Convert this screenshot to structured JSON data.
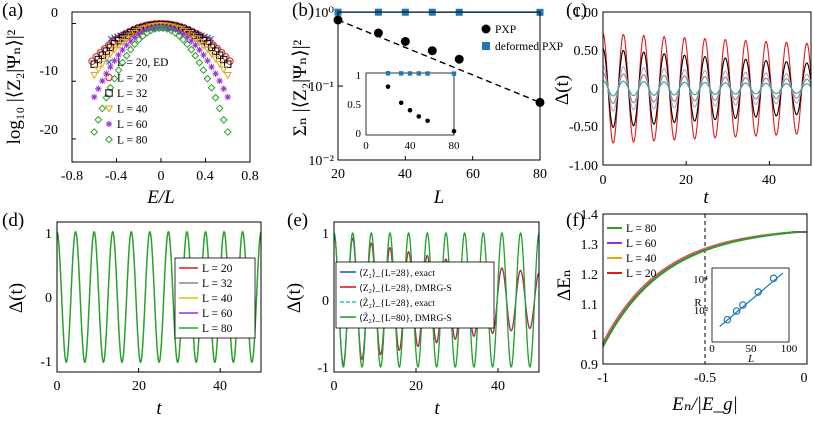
{
  "colors": {
    "red": "#e41a1c",
    "black": "#000000",
    "blue": "#1f5fbf",
    "sky": "#1f77b4",
    "orange": "#e8a317",
    "yellow": "#e6c300",
    "purple": "#9b30d9",
    "green": "#2ca02c",
    "darkgreen": "#1f8a2a",
    "cyan": "#14c8d8",
    "teal": "#2f9e9e",
    "gray": "#888888",
    "mauve": "#c29ab8"
  },
  "chart_data": [
    {
      "panel": "(a)",
      "type": "scatter",
      "xlabel": "E/L",
      "ylabel": "log₁₀ |⟨Z₂|Ψₙ⟩|²",
      "xlim": [
        -0.8,
        0.8
      ],
      "ylim": [
        -24,
        2
      ],
      "xticks": [
        "-0.8",
        "-0.4",
        "0",
        "0.4",
        "0.8"
      ],
      "yticks": [
        "0",
        "-10",
        "-20"
      ],
      "legend": [
        "L = 20, ED",
        "L = 20",
        "L = 32",
        "L = 40",
        "L = 60",
        "L = 80"
      ],
      "series": [
        {
          "name": "L = 20, ED",
          "color": "blue",
          "marker": "x",
          "peak": -0.8,
          "curv": 9,
          "xmax": 0.45
        },
        {
          "name": "L = 20",
          "color": "red",
          "marker": "circle",
          "peak": 0,
          "curv": 17,
          "xmax": 0.62
        },
        {
          "name": "L = 32",
          "color": "black",
          "marker": "square",
          "peak": -0.2,
          "curv": 19,
          "xmax": 0.6
        },
        {
          "name": "L = 40",
          "color": "orange",
          "marker": "triangle",
          "peak": -0.3,
          "curv": 24,
          "xmax": 0.6
        },
        {
          "name": "L = 60",
          "color": "purple",
          "marker": "star",
          "peak": -0.5,
          "curv": 34,
          "xmax": 0.6
        },
        {
          "name": "L = 80",
          "color": "green",
          "marker": "diamond",
          "peak": -0.8,
          "curv": 50,
          "xmax": 0.6
        }
      ]
    },
    {
      "panel": "(b)",
      "type": "line",
      "xlabel": "L",
      "ylabel": "Σₙ |⟨Z₂|Ψₙ⟩|²",
      "yscale": "log",
      "xlim": [
        20,
        80
      ],
      "ylim": [
        0.01,
        1
      ],
      "xticks": [
        "20",
        "40",
        "60",
        "80"
      ],
      "yticks": [
        "10⁰",
        "10⁻¹",
        "10⁻²"
      ],
      "series": [
        {
          "name": "PXP",
          "x": [
            20,
            32,
            40,
            48,
            56,
            80
          ],
          "y": [
            0.78,
            0.52,
            0.4,
            0.3,
            0.23,
            0.06
          ]
        },
        {
          "name": "deformed PXP",
          "x": [
            20,
            32,
            40,
            48,
            56,
            80
          ],
          "y": [
            0.995,
            0.994,
            0.993,
            0.993,
            0.992,
            0.99
          ]
        }
      ],
      "inset": {
        "xticks": [
          "0",
          "40",
          "80"
        ],
        "yticks": [
          "1",
          "0.5",
          "0"
        ],
        "pxp": {
          "x": [
            20,
            32,
            40,
            48,
            56,
            80
          ],
          "y": [
            0.78,
            0.52,
            0.4,
            0.3,
            0.23,
            0.06
          ]
        },
        "deformed": {
          "x": [
            20,
            32,
            40,
            48,
            56,
            80
          ],
          "y": [
            0.995,
            0.994,
            0.993,
            0.993,
            0.992,
            0.99
          ]
        }
      }
    },
    {
      "panel": "(c)",
      "type": "line",
      "xlabel": "t",
      "ylabel": "Δ(t)",
      "xlim": [
        0,
        50
      ],
      "ylim": [
        -1,
        1
      ],
      "xticks": [
        "0",
        "20",
        "40"
      ],
      "yticks": [
        "1.00",
        "0.50",
        "0",
        "-0.50",
        "-1.00"
      ],
      "series": [
        {
          "color": "red",
          "amp": 0.72,
          "decay": 0.004
        },
        {
          "color": "black",
          "amp": 0.52,
          "decay": 0.009
        },
        {
          "color": "mauve",
          "amp": 0.3,
          "decay": 0.01
        },
        {
          "color": "gray",
          "amp": 0.2,
          "decay": 0.01
        },
        {
          "color": "teal",
          "amp": 0.1,
          "decay": 0.01
        }
      ]
    },
    {
      "panel": "(d)",
      "type": "line",
      "xlabel": "t",
      "ylabel": "Δ(t)",
      "xlim": [
        0,
        50
      ],
      "ylim": [
        -1.15,
        1.15
      ],
      "xticks": [
        "0",
        "20",
        "40"
      ],
      "yticks": [
        "1",
        "0",
        "-1"
      ],
      "legend": [
        "L = 20",
        "L = 32",
        "L = 40",
        "L = 60",
        "L = 80"
      ],
      "legend_colors": [
        "red",
        "gray",
        "yellow",
        "purple",
        "green"
      ],
      "series": [
        {
          "name": "L = 80",
          "color": "green",
          "amp": 1.0,
          "decay": 0
        }
      ]
    },
    {
      "panel": "(e)",
      "type": "line",
      "xlabel": "t",
      "ylabel": "Δ(t)",
      "xlim": [
        0,
        50
      ],
      "ylim": [
        -1.0,
        1.15
      ],
      "xticks": [
        "0",
        "20",
        "40"
      ],
      "yticks": [
        "1",
        "0",
        "-1"
      ],
      "legend": [
        "⟨Z₂⟩_{L=28}, exact",
        "⟨Z₂⟩_{L=28}, DMRG-S",
        "⟨Z̃₂⟩_{L=28}, exact",
        "⟨Z̃₂⟩_{L=80}, DMRG-S"
      ],
      "legend_colors": [
        "blue",
        "red",
        "cyan",
        "green"
      ],
      "series": [
        {
          "color": "blue",
          "amp": 1.0,
          "decay": 0.018
        },
        {
          "color": "green",
          "amp": 1.0,
          "decay": 0.0
        }
      ]
    },
    {
      "panel": "(f)",
      "type": "line",
      "xlabel": "Eₙ/|E_g|",
      "ylabel": "ΔEₙ",
      "xlim": [
        -1,
        0
      ],
      "ylim": [
        0.9,
        1.4
      ],
      "xticks": [
        "-1",
        "-0.5",
        "0"
      ],
      "yticks": [
        "1.4",
        "1.3",
        "1.2",
        "1.1",
        "1",
        "0.9"
      ],
      "legend": [
        "L = 80",
        "L = 60",
        "L = 40",
        "L = 20"
      ],
      "legend_colors": [
        "green",
        "purple",
        "orange",
        "red"
      ],
      "vline_x": -0.5,
      "inset": {
        "xlabel": "L",
        "ylabel": "R",
        "xticks": [
          "0",
          "50",
          "100"
        ],
        "yticks": [
          "10⁴",
          "10²"
        ],
        "x": [
          20,
          32,
          40,
          60,
          80
        ],
        "log10_y": [
          2.0,
          2.5,
          2.85,
          3.6,
          4.4
        ]
      }
    }
  ],
  "panel_labels": [
    "(a)",
    "(b)",
    "(c)",
    "(d)",
    "(e)",
    "(f)"
  ]
}
